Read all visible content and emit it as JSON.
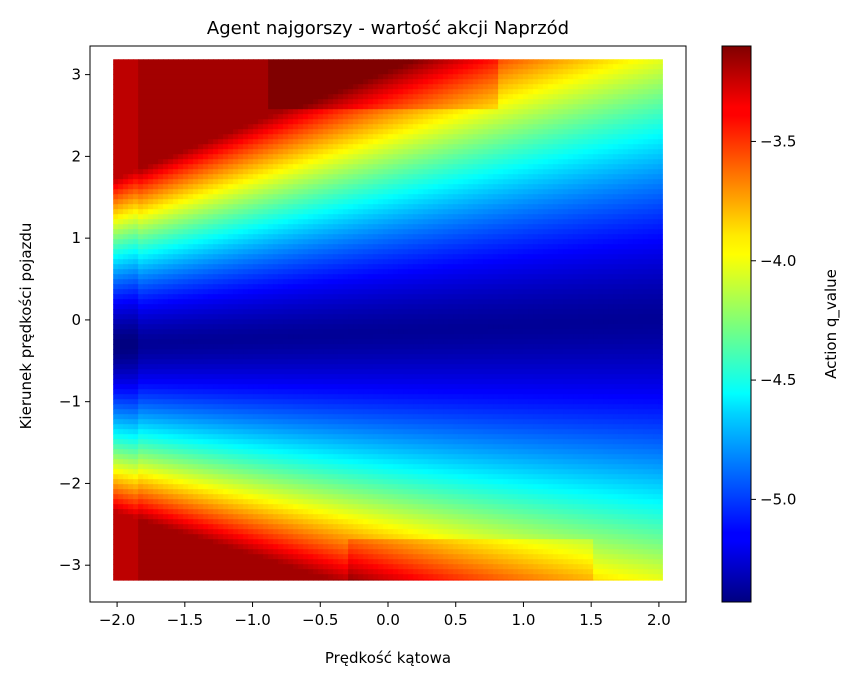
{
  "chart_data": {
    "type": "heatmap",
    "title": "Agent najgorszy - wartość akcji Naprzód",
    "xlabel": "Prędkość kątowa",
    "ylabel": "Kierunek prędkości pojazdu",
    "xlim": [
      -2.2,
      2.2
    ],
    "ylim": [
      -3.45,
      3.35
    ],
    "xticks": [
      -2.0,
      -1.5,
      -1.0,
      -0.5,
      0.0,
      0.5,
      1.0,
      1.5,
      2.0
    ],
    "xtick_labels": [
      "−2.0",
      "−1.5",
      "−1.0",
      "−0.5",
      "0.0",
      "0.5",
      "1.0",
      "1.5",
      "2.0"
    ],
    "yticks": [
      -3,
      -2,
      -1,
      0,
      1,
      2,
      3
    ],
    "ytick_labels": [
      "−3",
      "−2",
      "−1",
      "0",
      "1",
      "2",
      "3"
    ],
    "colorbar": {
      "label": "Action q_value",
      "colormap": "jet",
      "range": [
        -5.43,
        -3.1
      ],
      "ticks": [
        -5.0,
        -4.5,
        -4.0,
        -3.5
      ],
      "tick_labels": [
        "−5.0",
        "−4.5",
        "−4.0",
        "−3.5"
      ]
    },
    "data_extent": {
      "x": [
        -2.0,
        2.0
      ],
      "y": [
        -3.14,
        3.14
      ]
    },
    "grid": false
  }
}
